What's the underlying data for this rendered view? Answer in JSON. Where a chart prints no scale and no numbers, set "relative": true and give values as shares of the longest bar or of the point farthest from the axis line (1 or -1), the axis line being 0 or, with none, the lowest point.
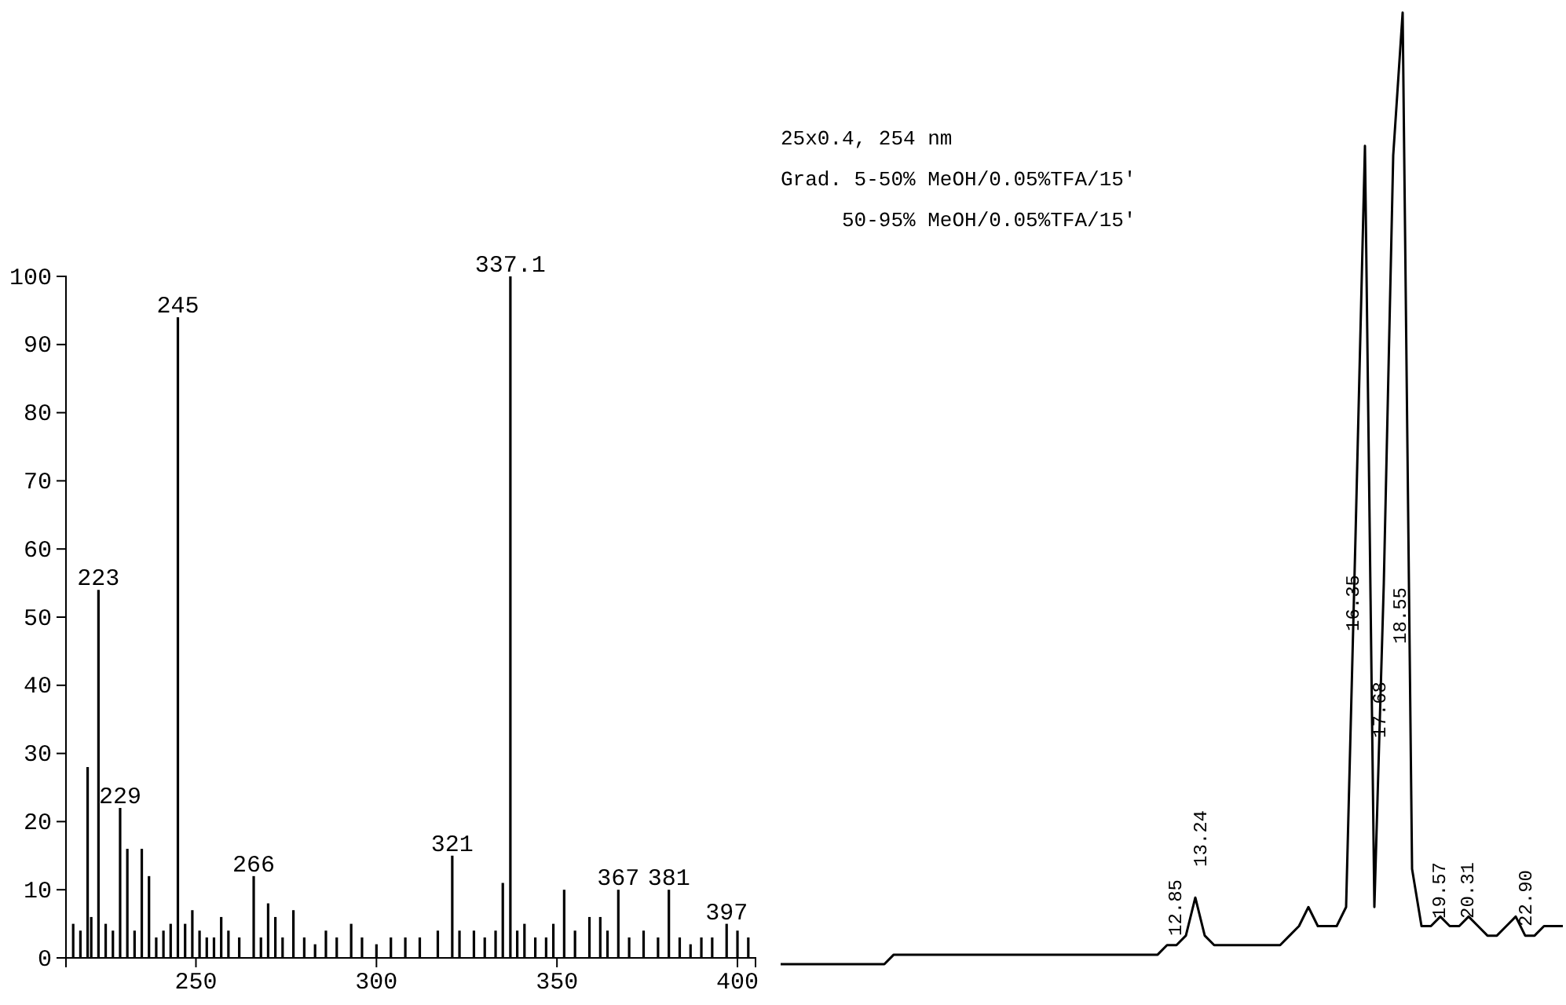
{
  "chart_data": [
    {
      "type": "bar",
      "xlim": [
        214,
        405
      ],
      "xticks": [
        250,
        300,
        350,
        400
      ],
      "ylim": [
        0,
        100
      ],
      "yticks": [
        0,
        10,
        20,
        30,
        40,
        50,
        60,
        70,
        80,
        90,
        100
      ],
      "grid": false,
      "color": "#000000",
      "x": [
        216,
        218,
        220,
        221,
        223,
        225,
        227,
        229,
        231,
        233,
        235,
        237,
        239,
        241,
        243,
        245,
        247,
        249,
        251,
        253,
        255,
        257,
        259,
        262,
        266,
        268,
        270,
        272,
        274,
        277,
        280,
        283,
        286,
        289,
        293,
        296,
        300,
        304,
        308,
        312,
        317,
        321,
        323,
        327,
        330,
        333,
        335,
        337.1,
        339,
        341,
        344,
        347,
        349,
        352,
        355,
        359,
        362,
        364,
        367,
        370,
        374,
        378,
        381,
        384,
        387,
        390,
        393,
        397,
        400,
        403
      ],
      "values": [
        5,
        4,
        28,
        6,
        54,
        5,
        4,
        22,
        16,
        4,
        16,
        12,
        3,
        4,
        5,
        94,
        5,
        7,
        4,
        3,
        3,
        6,
        4,
        3,
        12,
        3,
        8,
        6,
        3,
        7,
        3,
        2,
        4,
        3,
        5,
        3,
        2,
        3,
        3,
        3,
        4,
        15,
        4,
        4,
        3,
        4,
        11,
        100,
        4,
        5,
        3,
        3,
        5,
        10,
        4,
        6,
        6,
        4,
        10,
        3,
        4,
        3,
        10,
        3,
        2,
        3,
        3,
        5,
        4,
        3
      ],
      "annotations": [
        {
          "text": "223",
          "x": 223,
          "y": 54
        },
        {
          "text": "229",
          "x": 229,
          "y": 22
        },
        {
          "text": "245",
          "x": 245,
          "y": 94
        },
        {
          "text": "266",
          "x": 266,
          "y": 12
        },
        {
          "text": "321",
          "x": 321,
          "y": 15
        },
        {
          "text": "337.1",
          "x": 337.1,
          "y": 100
        },
        {
          "text": "367",
          "x": 367,
          "y": 10
        },
        {
          "text": "381",
          "x": 381,
          "y": 10
        },
        {
          "text": "397",
          "x": 397,
          "y": 5
        }
      ]
    },
    {
      "type": "line",
      "relative": true,
      "color": "#000000",
      "categories": [
        null,
        null,
        null,
        null,
        null,
        null,
        null,
        null,
        null,
        null,
        null,
        null,
        null,
        null,
        null,
        null,
        null,
        null,
        null,
        null,
        null,
        null,
        null,
        null,
        null,
        null,
        null,
        null,
        null,
        null,
        null,
        null,
        null,
        null,
        null,
        null,
        null,
        null,
        null,
        null,
        null,
        null,
        null,
        null,
        null,
        null,
        null,
        null,
        null,
        null,
        null,
        null,
        null,
        null,
        null,
        null,
        null,
        null,
        null,
        null,
        null,
        null,
        null,
        null,
        null,
        null,
        null,
        null,
        null,
        null,
        null,
        null,
        null,
        null,
        null,
        null,
        null,
        null,
        null,
        null,
        null,
        null,
        null,
        null
      ],
      "values": [
        0,
        0,
        0,
        0,
        0,
        0,
        0,
        0,
        0,
        0,
        0,
        0,
        0.01,
        0.01,
        0.01,
        0.01,
        0.01,
        0.01,
        0.01,
        0.01,
        0.01,
        0.01,
        0.01,
        0.01,
        0.01,
        0.01,
        0.01,
        0.01,
        0.01,
        0.01,
        0.01,
        0.01,
        0.01,
        0.01,
        0.01,
        0.01,
        0.01,
        0.01,
        0.01,
        0.01,
        0.01,
        0.02,
        0.02,
        0.03,
        0.07,
        0.03,
        0.02,
        0.02,
        0.02,
        0.02,
        0.02,
        0.02,
        0.02,
        0.02,
        0.03,
        0.04,
        0.06,
        0.04,
        0.04,
        0.04,
        0.06,
        0.45,
        0.86,
        0.06,
        0.4,
        0.85,
        1,
        0.1,
        0.04,
        0.04,
        0.05,
        0.04,
        0.04,
        0.05,
        0.04,
        0.03,
        0.03,
        0.04,
        0.05,
        0.03,
        0.03,
        0.04,
        0.04,
        0.04
      ],
      "annotations": [
        "25x0.4, 254 nm",
        "Grad. 5-50% MeOH/0.05%TFA/15′",
        "50-95% MeOH/0.05%TFA/15′",
        "12.85",
        "13.24",
        "16.35",
        "17.68",
        "18.55",
        "19.57",
        "20.31",
        "22.90"
      ]
    }
  ]
}
